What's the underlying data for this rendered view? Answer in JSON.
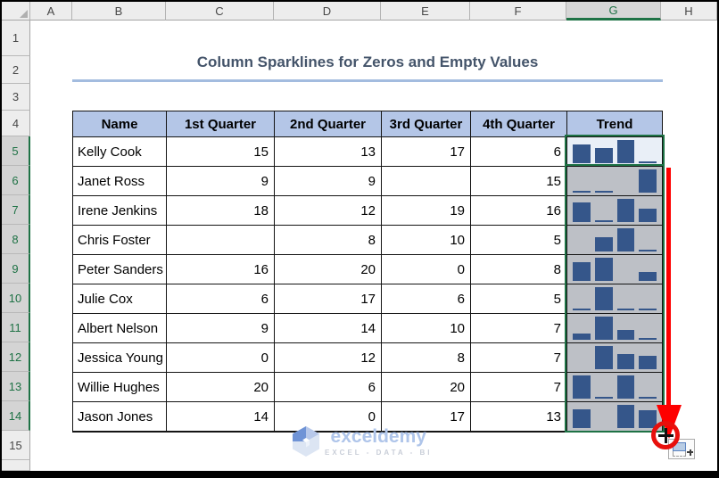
{
  "sheet": {
    "columns": [
      "A",
      "B",
      "C",
      "D",
      "E",
      "F",
      "G",
      "H"
    ],
    "active_column": "G",
    "rows": [
      "1",
      "2",
      "3",
      "4",
      "5",
      "6",
      "7",
      "8",
      "9",
      "10",
      "11",
      "12",
      "13",
      "14",
      "15"
    ],
    "selected_rows_from": 5,
    "selected_rows_to": 14
  },
  "title": {
    "text": "Column Sparklines for Zeros and Empty Values"
  },
  "table": {
    "headers": [
      "Name",
      "1st Quarter",
      "2nd Quarter",
      "3rd Quarter",
      "4th Quarter",
      "Trend"
    ],
    "rows": [
      {
        "name": "Kelly Cook",
        "q1": 15,
        "q2": 13,
        "q3": 17,
        "q4": 6
      },
      {
        "name": "Janet Ross",
        "q1": 9,
        "q2": 9,
        "q3": null,
        "q4": 15
      },
      {
        "name": "Irene Jenkins",
        "q1": 18,
        "q2": 12,
        "q3": 19,
        "q4": 16
      },
      {
        "name": "Chris Foster",
        "q1": null,
        "q2": 8,
        "q3": 10,
        "q4": 5
      },
      {
        "name": "Peter Sanders",
        "q1": 16,
        "q2": 20,
        "q3": 0,
        "q4": 8
      },
      {
        "name": "Julie Cox",
        "q1": 6,
        "q2": 17,
        "q3": 6,
        "q4": 5
      },
      {
        "name": "Albert Nelson",
        "q1": 9,
        "q2": 14,
        "q3": 10,
        "q4": 7
      },
      {
        "name": "Jessica Young",
        "q1": 0,
        "q2": 12,
        "q3": 8,
        "q4": 7
      },
      {
        "name": "Willie Hughes",
        "q1": 20,
        "q2": 6,
        "q3": 20,
        "q4": 7
      },
      {
        "name": "Jason Jones",
        "q1": 14,
        "q2": 0,
        "q3": 17,
        "q4": 13
      }
    ]
  },
  "chart_data": {
    "type": "bar",
    "title": "Trend column sparklines (one mini column chart per row; empty cells leave gaps, zero values draw no bar)",
    "categories": [
      "1st Quarter",
      "2nd Quarter",
      "3rd Quarter",
      "4th Quarter"
    ],
    "series": [
      {
        "name": "Kelly Cook",
        "values": [
          15,
          13,
          17,
          6
        ]
      },
      {
        "name": "Janet Ross",
        "values": [
          9,
          9,
          null,
          15
        ]
      },
      {
        "name": "Irene Jenkins",
        "values": [
          18,
          12,
          19,
          16
        ]
      },
      {
        "name": "Chris Foster",
        "values": [
          null,
          8,
          10,
          5
        ]
      },
      {
        "name": "Peter Sanders",
        "values": [
          16,
          20,
          0,
          8
        ]
      },
      {
        "name": "Julie Cox",
        "values": [
          6,
          17,
          6,
          5
        ]
      },
      {
        "name": "Albert Nelson",
        "values": [
          9,
          14,
          10,
          7
        ]
      },
      {
        "name": "Jessica Young",
        "values": [
          0,
          12,
          8,
          7
        ]
      },
      {
        "name": "Willie Hughes",
        "values": [
          20,
          6,
          20,
          7
        ]
      },
      {
        "name": "Jason Jones",
        "values": [
          14,
          0,
          17,
          13
        ]
      }
    ],
    "legend": false,
    "axis": "auto per sparkline"
  },
  "watermark": {
    "brand": "exceldemy",
    "tagline": "EXCEL - DATA - BI"
  },
  "icons": {
    "fill_handle_cursor": "plus-crosshair",
    "autofill_options": "fill-box-plus",
    "select_all": "corner-triangle"
  },
  "colors": {
    "table_header_fill": "#B4C6E7",
    "sparkline_bar": "#35568A",
    "selection_fill": "#BDC0C6",
    "active_cell_fill": "#E9EFF7",
    "excel_green": "#1E7245",
    "title_text": "#44546A",
    "title_underline": "#A3BCDF",
    "arrow_red": "#FE0000"
  }
}
